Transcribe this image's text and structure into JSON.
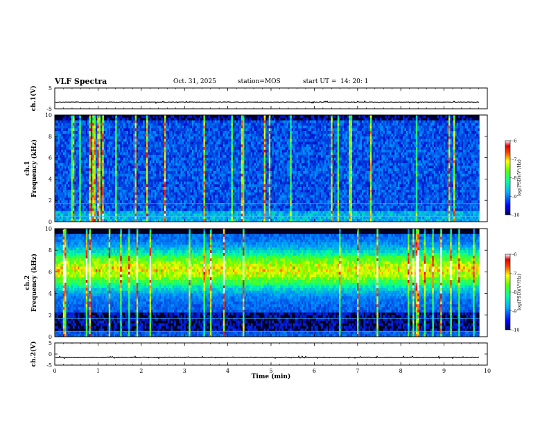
{
  "header": {
    "title": "VLF Spectra",
    "date": "Oct. 31, 2025",
    "station_label": "station=",
    "station": "MOS",
    "start_label": "start UT =",
    "start_time": "14: 20: 1"
  },
  "chart_data": [
    {
      "type": "line",
      "panel": "ch1-waveform",
      "ylabel": "ch.1(V)",
      "ylim": [
        -5,
        5
      ],
      "yticks": [
        "5",
        "-5"
      ],
      "xlim": [
        0,
        10
      ],
      "series_level": -1.8
    },
    {
      "type": "heatmap",
      "panel": "ch1-spectrogram",
      "ylabel_top": "ch.1",
      "ylabel": "Frequency (kHz)",
      "ylim": [
        0,
        10
      ],
      "yticks": [
        "0",
        "2",
        "4",
        "6",
        "8",
        "10"
      ],
      "xlim": [
        0,
        9.82
      ],
      "colorbar": {
        "label": "log(PSD)(V²/Hz)",
        "ticks": [
          "-6",
          "-7",
          "-8",
          "-9",
          "-10"
        ],
        "range": [
          -10,
          -6
        ]
      }
    },
    {
      "type": "heatmap",
      "panel": "ch2-spectrogram",
      "ylabel_top": "ch.2",
      "ylabel": "Frequency (kHz)",
      "ylim": [
        0,
        10
      ],
      "yticks": [
        "0",
        "2",
        "4",
        "6",
        "8",
        "10"
      ],
      "xlim": [
        0,
        9.82
      ],
      "colorbar": {
        "label": "log(PSD)(V²/Hz)",
        "ticks": [
          "-6",
          "-7",
          "-8",
          "-9",
          "-10"
        ],
        "range": [
          -10,
          -6
        ]
      }
    },
    {
      "type": "line",
      "panel": "ch2-waveform",
      "ylabel": "ch.2(V)",
      "ylim": [
        -5,
        5
      ],
      "yticks": [
        "5",
        "0",
        "-5"
      ],
      "xlim": [
        0,
        10
      ],
      "series_level": -1.5
    }
  ],
  "xaxis": {
    "label": "Time (min)",
    "ticks": [
      "0",
      "1",
      "2",
      "3",
      "4",
      "5",
      "6",
      "7",
      "8",
      "9",
      "10"
    ],
    "range": [
      0,
      10
    ]
  }
}
